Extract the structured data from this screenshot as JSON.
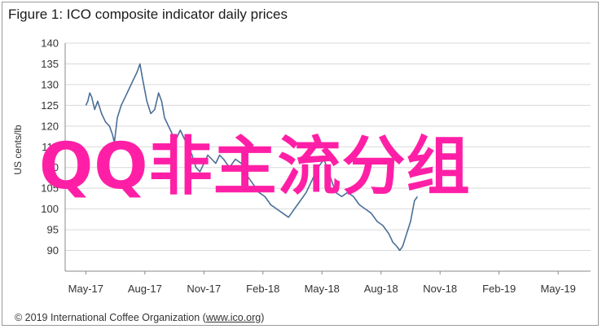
{
  "title": "Figure 1: ICO composite indicator daily prices",
  "footer": {
    "prefix": "© 2019 International Coffee Organization (",
    "link": "www.ico.org",
    "suffix": ")"
  },
  "overlay_text": "QQ非主流分组",
  "colors": {
    "line": "#4a6f97",
    "grid": "#d9d9d9",
    "overlay": "#ff1fa6"
  },
  "chart_data": {
    "type": "line",
    "title": "Figure 1: ICO composite indicator daily prices",
    "xlabel": "",
    "ylabel": "US cents/lb",
    "ylim": [
      85,
      140
    ],
    "yticks": [
      90,
      95,
      100,
      105,
      110,
      115,
      120,
      125,
      130,
      135,
      140
    ],
    "xticks": [
      "May-17",
      "Aug-17",
      "Nov-17",
      "Feb-18",
      "May-18",
      "Aug-18",
      "Nov-18",
      "Feb-19",
      "May-19"
    ],
    "grid": "horizontal",
    "series": [
      {
        "values": [
          [
            0,
            125
          ],
          [
            0.1,
            126
          ],
          [
            0.2,
            128
          ],
          [
            0.3,
            127
          ],
          [
            0.45,
            124
          ],
          [
            0.6,
            126
          ],
          [
            0.8,
            123
          ],
          [
            1.0,
            121
          ],
          [
            1.2,
            120
          ],
          [
            1.35,
            118
          ],
          [
            1.45,
            116
          ],
          [
            1.6,
            122
          ],
          [
            1.8,
            125
          ],
          [
            2.0,
            127
          ],
          [
            2.2,
            129
          ],
          [
            2.4,
            131
          ],
          [
            2.6,
            133
          ],
          [
            2.75,
            135
          ],
          [
            2.9,
            131
          ],
          [
            3.1,
            126
          ],
          [
            3.3,
            123
          ],
          [
            3.5,
            124
          ],
          [
            3.7,
            128
          ],
          [
            3.85,
            126
          ],
          [
            4.0,
            122
          ],
          [
            4.2,
            120
          ],
          [
            4.4,
            118
          ],
          [
            4.6,
            117
          ],
          [
            4.8,
            119
          ],
          [
            5.0,
            117
          ],
          [
            5.2,
            115
          ],
          [
            5.4,
            113
          ],
          [
            5.6,
            110
          ],
          [
            5.8,
            109
          ],
          [
            6.0,
            111
          ],
          [
            6.2,
            113
          ],
          [
            6.4,
            112
          ],
          [
            6.6,
            111
          ],
          [
            6.8,
            113
          ],
          [
            7.0,
            112
          ],
          [
            7.3,
            110
          ],
          [
            7.6,
            112
          ],
          [
            7.9,
            111
          ],
          [
            8.2,
            108
          ],
          [
            8.5,
            106
          ],
          [
            8.8,
            104
          ],
          [
            9.1,
            103
          ],
          [
            9.4,
            101
          ],
          [
            9.7,
            100
          ],
          [
            10.0,
            99
          ],
          [
            10.3,
            98
          ],
          [
            10.6,
            100
          ],
          [
            10.9,
            102
          ],
          [
            11.2,
            104
          ],
          [
            11.5,
            107
          ],
          [
            11.8,
            110
          ],
          [
            12.1,
            112
          ],
          [
            12.4,
            108
          ],
          [
            12.7,
            104
          ],
          [
            13.0,
            103
          ],
          [
            13.3,
            104
          ],
          [
            13.6,
            103
          ],
          [
            13.9,
            101
          ],
          [
            14.2,
            100
          ],
          [
            14.5,
            99
          ],
          [
            14.8,
            97
          ],
          [
            15.1,
            96
          ],
          [
            15.4,
            94
          ],
          [
            15.6,
            92
          ],
          [
            15.8,
            91
          ],
          [
            15.95,
            90
          ],
          [
            16.1,
            91
          ],
          [
            16.3,
            94
          ],
          [
            16.5,
            97
          ],
          [
            16.7,
            102
          ],
          [
            16.85,
            103
          ]
        ]
      }
    ]
  }
}
